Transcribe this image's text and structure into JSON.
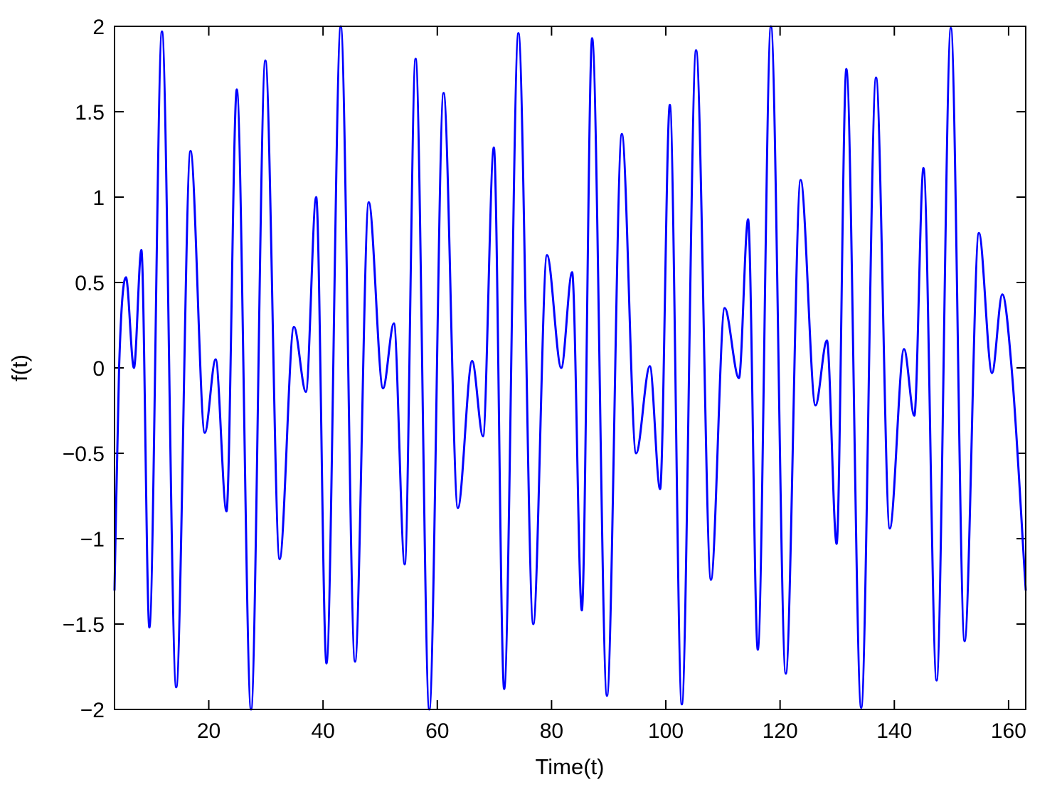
{
  "chart_data": {
    "type": "line",
    "title": "",
    "xlabel": "Time(t)",
    "ylabel": "f(t)",
    "xlim": [
      3.5,
      163
    ],
    "ylim": [
      -2,
      2
    ],
    "xticks": [
      20,
      40,
      60,
      80,
      100,
      120,
      140,
      160
    ],
    "xtick_labels": [
      "20",
      "40",
      "60",
      "80",
      "100",
      "120",
      "140",
      "160"
    ],
    "yticks": [
      -2,
      -1.5,
      -1,
      -0.5,
      0,
      0.5,
      1,
      1.5,
      2
    ],
    "ytick_labels": [
      "−2",
      "−1.5",
      "−1",
      "−0.5",
      "0",
      "0.5",
      "1",
      "1.5",
      "2"
    ],
    "grid": false,
    "series": [
      {
        "color": "#0000ff",
        "x": [
          3.5,
          4.3,
          5.5,
          6.9,
          8.2,
          9.6,
          11.8,
          14.3,
          16.8,
          19.3,
          21.2,
          23.1,
          24.9,
          27.4,
          29.9,
          32.4,
          34.9,
          37.0,
          38.8,
          40.6,
          43.1,
          45.6,
          48.0,
          50.5,
          52.4,
          54.3,
          56.2,
          58.6,
          61.1,
          63.6,
          66.1,
          68.0,
          69.9,
          71.7,
          74.2,
          76.8,
          79.2,
          81.7,
          83.6,
          85.3,
          87.1,
          89.7,
          92.3,
          94.8,
          97.2,
          99.0,
          100.7,
          102.8,
          105.3,
          107.9,
          110.3,
          112.8,
          114.4,
          116.1,
          118.4,
          121.0,
          123.6,
          126.2,
          128.2,
          129.9,
          131.6,
          134.2,
          136.8,
          139.2,
          141.7,
          143.5,
          145.1,
          147.4,
          149.9,
          152.3,
          154.8,
          157.1,
          158.9,
          160.6,
          163.0
        ],
        "y": [
          -1.3,
          0.0,
          0.53,
          0.0,
          0.69,
          -1.52,
          1.97,
          -1.87,
          1.27,
          -0.38,
          0.05,
          -0.84,
          1.63,
          -2.0,
          1.8,
          -1.12,
          0.24,
          -0.14,
          1.0,
          -1.73,
          2.0,
          -1.72,
          0.97,
          -0.12,
          0.26,
          -1.15,
          1.81,
          -2.0,
          1.61,
          -0.82,
          0.04,
          -0.4,
          1.29,
          -1.88,
          1.96,
          -1.5,
          0.66,
          0.0,
          0.56,
          -1.42,
          1.93,
          -1.92,
          1.37,
          -0.5,
          0.01,
          -0.71,
          1.54,
          -1.97,
          1.86,
          -1.24,
          0.35,
          -0.06,
          0.87,
          -1.65,
          2.0,
          -1.79,
          1.1,
          -0.22,
          0.16,
          -1.03,
          1.75,
          -1.99,
          1.7,
          -0.94,
          0.11,
          -0.28,
          1.17,
          -1.83,
          1.99,
          -1.6,
          0.79,
          -0.03,
          0.43,
          -0.03,
          -1.3
        ]
      }
    ]
  }
}
